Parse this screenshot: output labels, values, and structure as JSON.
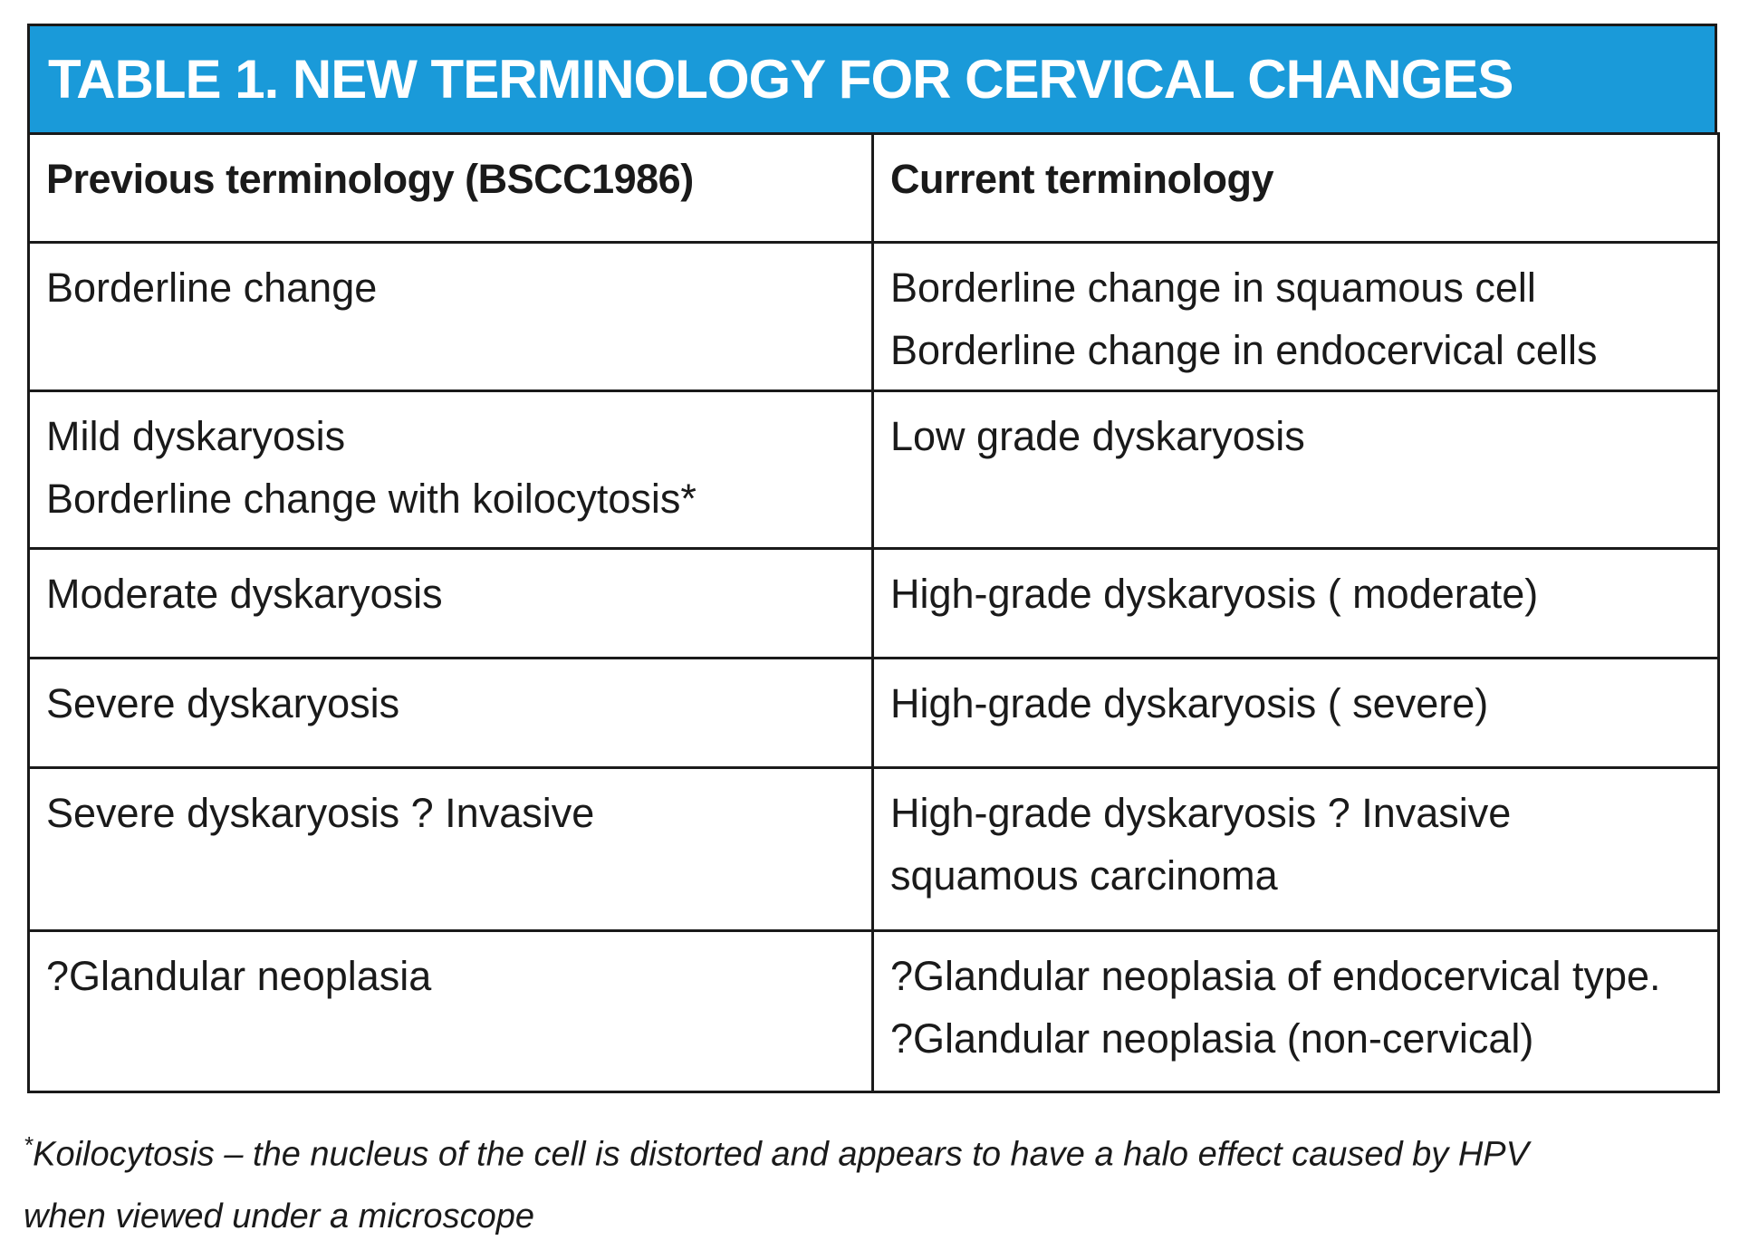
{
  "table": {
    "title": "TABLE 1. NEW TERMINOLOGY FOR CERVICAL CHANGES",
    "headers": {
      "previous": "Previous terminology (BSCC1986)",
      "current": "Current terminology"
    },
    "rows": [
      {
        "previous": [
          "Borderline change"
        ],
        "current": [
          "Borderline change in squamous cell",
          "Borderline change in endocervical cells"
        ]
      },
      {
        "previous": [
          "Mild dyskaryosis",
          "Borderline change with koilocytosis*"
        ],
        "current": [
          "Low grade dyskaryosis"
        ]
      },
      {
        "previous": [
          "Moderate dyskaryosis"
        ],
        "current": [
          "High-grade dyskaryosis ( moderate)"
        ]
      },
      {
        "previous": [
          "Severe dyskaryosis"
        ],
        "current": [
          "High-grade dyskaryosis ( severe)"
        ]
      },
      {
        "previous": [
          "Severe dyskaryosis ? Invasive"
        ],
        "current": [
          "High-grade dyskaryosis ? Invasive",
          "squamous carcinoma"
        ]
      },
      {
        "previous": [
          "?Glandular neoplasia"
        ],
        "current": [
          "?Glandular neoplasia of endocervical type.",
          "?Glandular neoplasia (non-cervical)"
        ]
      }
    ]
  },
  "footnote": {
    "marker": "*",
    "line1": "Koilocytosis – the nucleus of the cell is distorted and appears to have a halo effect caused by HPV",
    "line2": "when viewed under a microscope"
  }
}
